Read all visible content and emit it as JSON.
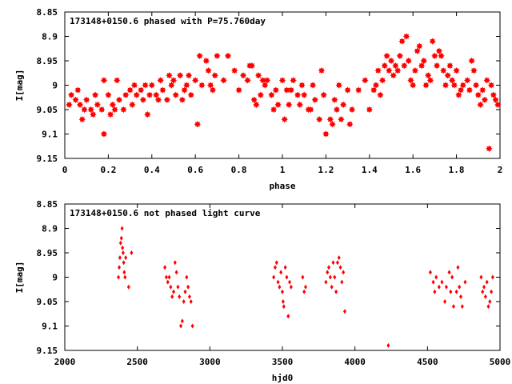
{
  "chart_data": [
    {
      "type": "scatter",
      "title": "173148+0150.6 phased with P=75.760day",
      "xlabel": "phase",
      "ylabel": "I[mag]",
      "xlim": [
        0,
        2
      ],
      "ylim": [
        9.15,
        8.85
      ],
      "y_inverted": true,
      "xticks": [
        "0",
        "0.2",
        "0.4",
        "0.6",
        "0.8",
        "1",
        "1.2",
        "1.4",
        "1.6",
        "1.8",
        "2"
      ],
      "yticks": [
        "8.85",
        "8.9",
        "8.95",
        "9",
        "9.05",
        "9.1",
        "9.15"
      ],
      "grid": false,
      "marker_color": "#ff0000",
      "series": [
        {
          "marker": "star",
          "points": [
            [
              0.02,
              9.04
            ],
            [
              0.03,
              9.02
            ],
            [
              0.05,
              9.03
            ],
            [
              0.06,
              9.01
            ],
            [
              0.07,
              9.04
            ],
            [
              0.08,
              9.07
            ],
            [
              0.09,
              9.05
            ],
            [
              0.1,
              9.03
            ],
            [
              0.12,
              9.05
            ],
            [
              0.13,
              9.06
            ],
            [
              0.14,
              9.02
            ],
            [
              0.15,
              9.04
            ],
            [
              0.17,
              9.05
            ],
            [
              0.18,
              9.1
            ],
            [
              0.18,
              8.99
            ],
            [
              0.2,
              9.02
            ],
            [
              0.21,
              9.06
            ],
            [
              0.22,
              9.04
            ],
            [
              0.23,
              9.05
            ],
            [
              0.24,
              8.99
            ],
            [
              0.25,
              9.03
            ],
            [
              0.27,
              9.05
            ],
            [
              0.28,
              9.02
            ],
            [
              0.3,
              9.01
            ],
            [
              0.31,
              9.04
            ],
            [
              0.32,
              9.0
            ],
            [
              0.33,
              9.02
            ],
            [
              0.35,
              9.01
            ],
            [
              0.36,
              9.03
            ],
            [
              0.37,
              9.0
            ],
            [
              0.38,
              9.06
            ],
            [
              0.39,
              9.02
            ],
            [
              0.4,
              9.0
            ],
            [
              0.42,
              9.02
            ],
            [
              0.43,
              9.03
            ],
            [
              0.44,
              8.99
            ],
            [
              0.45,
              9.01
            ],
            [
              0.47,
              9.03
            ],
            [
              0.48,
              8.98
            ],
            [
              0.49,
              9.0
            ],
            [
              0.5,
              8.99
            ],
            [
              0.51,
              9.02
            ],
            [
              0.53,
              8.98
            ],
            [
              0.54,
              9.03
            ],
            [
              0.55,
              9.01
            ],
            [
              0.56,
              9.0
            ],
            [
              0.57,
              8.98
            ],
            [
              0.58,
              9.02
            ],
            [
              0.6,
              8.99
            ],
            [
              0.61,
              9.08
            ],
            [
              0.62,
              8.94
            ],
            [
              0.63,
              9.0
            ],
            [
              0.65,
              8.95
            ],
            [
              0.66,
              8.97
            ],
            [
              0.67,
              9.0
            ],
            [
              0.68,
              9.01
            ],
            [
              0.69,
              8.98
            ],
            [
              0.7,
              8.94
            ],
            [
              0.73,
              8.99
            ],
            [
              0.75,
              8.94
            ],
            [
              0.78,
              8.97
            ],
            [
              0.8,
              9.01
            ],
            [
              0.82,
              8.98
            ],
            [
              0.84,
              8.99
            ],
            [
              0.85,
              8.96
            ],
            [
              0.86,
              8.96
            ],
            [
              0.87,
              9.03
            ],
            [
              0.88,
              9.04
            ],
            [
              0.89,
              8.98
            ],
            [
              0.9,
              9.02
            ],
            [
              0.91,
              8.99
            ],
            [
              0.92,
              9.0
            ],
            [
              0.93,
              8.99
            ],
            [
              0.95,
              9.02
            ],
            [
              0.96,
              9.05
            ],
            [
              0.97,
              9.01
            ],
            [
              0.98,
              9.04
            ],
            [
              1.0,
              8.99
            ],
            [
              1.01,
              9.07
            ],
            [
              1.02,
              9.01
            ],
            [
              1.03,
              9.04
            ],
            [
              1.04,
              9.01
            ],
            [
              1.05,
              8.99
            ],
            [
              1.07,
              9.02
            ],
            [
              1.08,
              9.04
            ],
            [
              1.09,
              9.0
            ],
            [
              1.1,
              9.02
            ],
            [
              1.12,
              9.05
            ],
            [
              1.13,
              9.05
            ],
            [
              1.14,
              9.0
            ],
            [
              1.15,
              9.03
            ],
            [
              1.17,
              9.07
            ],
            [
              1.18,
              8.97
            ],
            [
              1.19,
              9.02
            ],
            [
              1.2,
              9.1
            ],
            [
              1.22,
              9.07
            ],
            [
              1.23,
              9.08
            ],
            [
              1.24,
              9.03
            ],
            [
              1.25,
              9.05
            ],
            [
              1.26,
              9.0
            ],
            [
              1.27,
              9.07
            ],
            [
              1.28,
              9.04
            ],
            [
              1.3,
              9.01
            ],
            [
              1.31,
              9.08
            ],
            [
              1.32,
              9.05
            ],
            [
              1.35,
              9.01
            ],
            [
              1.38,
              8.99
            ],
            [
              1.4,
              9.05
            ],
            [
              1.42,
              9.01
            ],
            [
              1.43,
              9.0
            ],
            [
              1.44,
              8.97
            ],
            [
              1.45,
              9.02
            ],
            [
              1.46,
              8.99
            ],
            [
              1.47,
              8.96
            ],
            [
              1.48,
              8.94
            ],
            [
              1.49,
              8.97
            ],
            [
              1.5,
              8.95
            ],
            [
              1.51,
              8.98
            ],
            [
              1.52,
              8.96
            ],
            [
              1.53,
              8.97
            ],
            [
              1.54,
              8.94
            ],
            [
              1.55,
              8.91
            ],
            [
              1.56,
              8.96
            ],
            [
              1.57,
              8.9
            ],
            [
              1.58,
              8.95
            ],
            [
              1.59,
              8.99
            ],
            [
              1.6,
              9.0
            ],
            [
              1.61,
              8.97
            ],
            [
              1.62,
              8.93
            ],
            [
              1.63,
              8.92
            ],
            [
              1.64,
              8.96
            ],
            [
              1.65,
              8.95
            ],
            [
              1.66,
              9.0
            ],
            [
              1.67,
              8.98
            ],
            [
              1.68,
              8.99
            ],
            [
              1.69,
              8.91
            ],
            [
              1.7,
              8.94
            ],
            [
              1.71,
              8.96
            ],
            [
              1.72,
              8.93
            ],
            [
              1.73,
              8.94
            ],
            [
              1.74,
              8.97
            ],
            [
              1.75,
              9.0
            ],
            [
              1.76,
              8.98
            ],
            [
              1.77,
              8.96
            ],
            [
              1.78,
              8.99
            ],
            [
              1.79,
              9.0
            ],
            [
              1.8,
              8.97
            ],
            [
              1.81,
              9.02
            ],
            [
              1.82,
              9.01
            ],
            [
              1.83,
              9.0
            ],
            [
              1.85,
              8.99
            ],
            [
              1.86,
              9.01
            ],
            [
              1.87,
              8.95
            ],
            [
              1.88,
              8.97
            ],
            [
              1.89,
              9.0
            ],
            [
              1.9,
              9.02
            ],
            [
              1.91,
              9.04
            ],
            [
              1.92,
              9.01
            ],
            [
              1.93,
              9.03
            ],
            [
              1.94,
              8.99
            ],
            [
              1.95,
              9.13
            ],
            [
              1.96,
              9.0
            ],
            [
              1.97,
              9.02
            ],
            [
              1.98,
              9.03
            ],
            [
              1.99,
              9.04
            ]
          ]
        }
      ]
    },
    {
      "type": "scatter",
      "title": "173148+0150.6 not phased light curve",
      "xlabel": "hjd0",
      "ylabel": "I[mag]",
      "xlim": [
        2000,
        5000
      ],
      "ylim": [
        9.15,
        8.85
      ],
      "y_inverted": true,
      "xticks": [
        "2000",
        "2500",
        "3000",
        "3500",
        "4000",
        "4500",
        "5000"
      ],
      "yticks": [
        "8.85",
        "8.9",
        "8.95",
        "9",
        "9.05",
        "9.1",
        "9.15"
      ],
      "grid": false,
      "marker_color": "#ff0000",
      "series": [
        {
          "marker": "diamond",
          "points": [
            [
              2370,
              9.0
            ],
            [
              2375,
              8.98
            ],
            [
              2380,
              8.96
            ],
            [
              2385,
              8.93
            ],
            [
              2390,
              8.92
            ],
            [
              2395,
              8.9
            ],
            [
              2398,
              8.94
            ],
            [
              2402,
              8.95
            ],
            [
              2406,
              8.97
            ],
            [
              2410,
              8.99
            ],
            [
              2415,
              9.0
            ],
            [
              2420,
              8.96
            ],
            [
              2440,
              9.02
            ],
            [
              2460,
              8.95
            ],
            [
              2690,
              8.98
            ],
            [
              2700,
              9.0
            ],
            [
              2710,
              9.01
            ],
            [
              2720,
              9.0
            ],
            [
              2730,
              9.02
            ],
            [
              2740,
              9.04
            ],
            [
              2750,
              9.03
            ],
            [
              2760,
              8.97
            ],
            [
              2770,
              8.99
            ],
            [
              2780,
              9.02
            ],
            [
              2790,
              9.04
            ],
            [
              2800,
              9.1
            ],
            [
              2810,
              9.09
            ],
            [
              2820,
              9.05
            ],
            [
              2830,
              9.03
            ],
            [
              2840,
              9.0
            ],
            [
              2850,
              9.02
            ],
            [
              2860,
              9.04
            ],
            [
              2870,
              9.05
            ],
            [
              2880,
              9.1
            ],
            [
              3440,
              9.0
            ],
            [
              3450,
              8.98
            ],
            [
              3460,
              8.97
            ],
            [
              3470,
              9.01
            ],
            [
              3480,
              9.02
            ],
            [
              3490,
              8.99
            ],
            [
              3500,
              9.03
            ],
            [
              3505,
              9.05
            ],
            [
              3510,
              9.06
            ],
            [
              3520,
              8.98
            ],
            [
              3530,
              9.0
            ],
            [
              3540,
              9.08
            ],
            [
              3550,
              9.01
            ],
            [
              3560,
              9.02
            ],
            [
              3640,
              9.0
            ],
            [
              3650,
              9.03
            ],
            [
              3660,
              9.02
            ],
            [
              3800,
              9.01
            ],
            [
              3810,
              8.99
            ],
            [
              3820,
              8.98
            ],
            [
              3830,
              9.0
            ],
            [
              3840,
              9.02
            ],
            [
              3850,
              8.97
            ],
            [
              3860,
              9.0
            ],
            [
              3870,
              9.03
            ],
            [
              3880,
              8.97
            ],
            [
              3890,
              8.96
            ],
            [
              3900,
              8.98
            ],
            [
              3910,
              9.01
            ],
            [
              3920,
              8.99
            ],
            [
              3930,
              9.07
            ],
            [
              4230,
              9.14
            ],
            [
              4520,
              8.99
            ],
            [
              4540,
              9.01
            ],
            [
              4550,
              9.03
            ],
            [
              4560,
              9.0
            ],
            [
              4580,
              9.02
            ],
            [
              4600,
              9.01
            ],
            [
              4620,
              9.05
            ],
            [
              4630,
              9.02
            ],
            [
              4650,
              8.99
            ],
            [
              4660,
              9.03
            ],
            [
              4670,
              9.0
            ],
            [
              4680,
              9.06
            ],
            [
              4700,
              9.03
            ],
            [
              4710,
              8.98
            ],
            [
              4720,
              9.02
            ],
            [
              4730,
              9.04
            ],
            [
              4740,
              9.06
            ],
            [
              4760,
              9.01
            ],
            [
              4870,
              9.0
            ],
            [
              4880,
              9.03
            ],
            [
              4890,
              9.02
            ],
            [
              4900,
              9.04
            ],
            [
              4910,
              9.01
            ],
            [
              4920,
              9.06
            ],
            [
              4930,
              9.05
            ],
            [
              4940,
              9.03
            ],
            [
              4950,
              9.0
            ]
          ]
        }
      ]
    }
  ]
}
